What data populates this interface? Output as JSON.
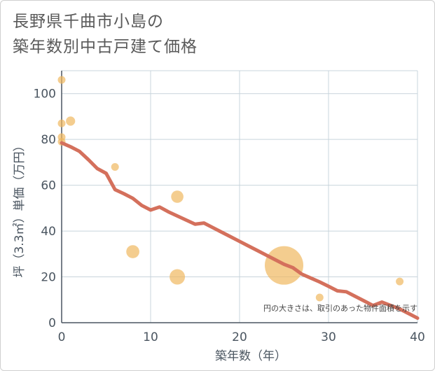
{
  "title_lines": [
    "長野県千曲市小島の",
    "築年数別中古戸建て価格"
  ],
  "colors": {
    "bubble": "#f0b860",
    "trend": "#d4705c",
    "grid": "#c8d4dc",
    "axis": "#4a5560"
  },
  "chart_data": {
    "type": "scatter",
    "title": "長野県千曲市小島の築年数別中古戸建て価格",
    "xlabel": "築年数（年）",
    "ylabel": "坪（3.3㎡）単価（万円）",
    "xlim": [
      0,
      40
    ],
    "ylim": [
      0,
      110
    ],
    "xticks": [
      0,
      10,
      20,
      30,
      40
    ],
    "yticks": [
      0,
      20,
      40,
      60,
      80,
      100
    ],
    "annotation": "円の大きさは、取引のあった物件面積を示す",
    "points": [
      {
        "x": 0,
        "y": 106,
        "size": 1
      },
      {
        "x": 0,
        "y": 87,
        "size": 1
      },
      {
        "x": 0,
        "y": 81,
        "size": 1
      },
      {
        "x": 0,
        "y": 79,
        "size": 1
      },
      {
        "x": 1,
        "y": 88,
        "size": 1.2
      },
      {
        "x": 6,
        "y": 68,
        "size": 1
      },
      {
        "x": 8,
        "y": 31,
        "size": 1.7
      },
      {
        "x": 13,
        "y": 55,
        "size": 1.6
      },
      {
        "x": 13,
        "y": 20,
        "size": 2
      },
      {
        "x": 25,
        "y": 25,
        "size": 5
      },
      {
        "x": 29,
        "y": 11,
        "size": 1
      },
      {
        "x": 38,
        "y": 18,
        "size": 1
      }
    ],
    "trend": {
      "x": [
        0,
        1,
        2,
        3,
        4,
        5,
        6,
        7,
        8,
        9,
        10,
        11,
        12,
        13,
        14,
        15,
        16,
        17,
        18,
        19,
        20,
        21,
        22,
        23,
        24,
        25,
        26,
        27,
        28,
        29,
        30,
        31,
        32,
        33,
        34,
        35,
        36,
        37,
        38,
        39,
        40
      ],
      "y": [
        78.5,
        76.8,
        74.8,
        71.2,
        67.3,
        65.2,
        58.1,
        56.3,
        54.3,
        51.2,
        49.2,
        50.5,
        48.4,
        46.6,
        44.8,
        43,
        43.5,
        41.5,
        39.5,
        37.5,
        35.5,
        33.5,
        31.5,
        29.5,
        27.5,
        25.5,
        24,
        21.2,
        19.5,
        17.8,
        15.9,
        13.9,
        13.5,
        11.5,
        9.5,
        7.5,
        9,
        7.5,
        6,
        4,
        2
      ]
    }
  }
}
